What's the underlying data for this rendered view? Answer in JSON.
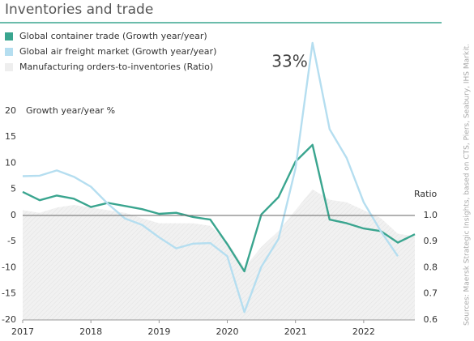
{
  "chart_data": {
    "type": "line",
    "title": "Inventories and trade",
    "source": "Sources: Maersk Strategic Insights, based on CTS, Piers, Seabury, IHS Markit.",
    "y_label": "Growth year/year %",
    "y2_label": "Ratio",
    "x": [
      2017,
      2017.25,
      2017.5,
      2017.75,
      2018,
      2018.25,
      2018.5,
      2018.75,
      2019,
      2019.25,
      2019.5,
      2019.75,
      2020,
      2020.25,
      2020.5,
      2020.75,
      2021,
      2021.25,
      2021.5,
      2021.75,
      2022,
      2022.25,
      2022.5,
      2022.75
    ],
    "xlim": [
      2017,
      2022.75
    ],
    "xticks": [
      2017,
      2018,
      2019,
      2020,
      2021,
      2022
    ],
    "ylim": [
      -20,
      33
    ],
    "yticks": [
      -20,
      -15,
      -10,
      -5,
      0,
      5,
      10,
      15,
      20
    ],
    "y2lim": [
      0.6,
      1.66
    ],
    "y2ticks": [
      0.6,
      0.7,
      0.8,
      0.9,
      {
        "value": 1,
        "label": "1.0"
      }
    ],
    "series": [
      {
        "name": "Global container trade (Growth year/year)",
        "color": "#3aa58f",
        "values": [
          4.5,
          2.9,
          3.8,
          3.2,
          1.6,
          2.4,
          1.8,
          1.2,
          0.3,
          0.5,
          -0.3,
          -0.8,
          -5.5,
          -10.7,
          0.2,
          3.5,
          10.3,
          13.5,
          -0.8,
          -1.5,
          -2.5,
          -3.0,
          -5.2,
          -3.6
        ]
      },
      {
        "name": "Global air freight market (Growth year/year)",
        "color": "#b5def0",
        "values": [
          7.5,
          7.6,
          8.6,
          7.4,
          5.5,
          2.2,
          -0.6,
          -1.8,
          -4.2,
          -6.3,
          -5.4,
          -5.3,
          -7.8,
          -18.5,
          -9.8,
          -4.5,
          9,
          33,
          16.5,
          11,
          2.5,
          -3,
          -7.8,
          null
        ],
        "value_labels": [
          null,
          null,
          null,
          null,
          null,
          null,
          null,
          null,
          null,
          null,
          null,
          null,
          null,
          null,
          null,
          null,
          null,
          "33%",
          null,
          null,
          null,
          null,
          null,
          null
        ]
      },
      {
        "name": "Manufacturing orders-to-inventories (Ratio)",
        "color": "#eeeeee",
        "axis": "y2",
        "area": true,
        "values": [
          1.02,
          1.01,
          1.03,
          1.04,
          1.03,
          1.02,
          1.01,
          0.99,
          0.97,
          0.97,
          0.97,
          0.96,
          0.9,
          0.8,
          0.88,
          0.94,
          1.02,
          1.1,
          1.06,
          1.05,
          1.02,
          0.99,
          0.93,
          0.92
        ]
      }
    ]
  }
}
